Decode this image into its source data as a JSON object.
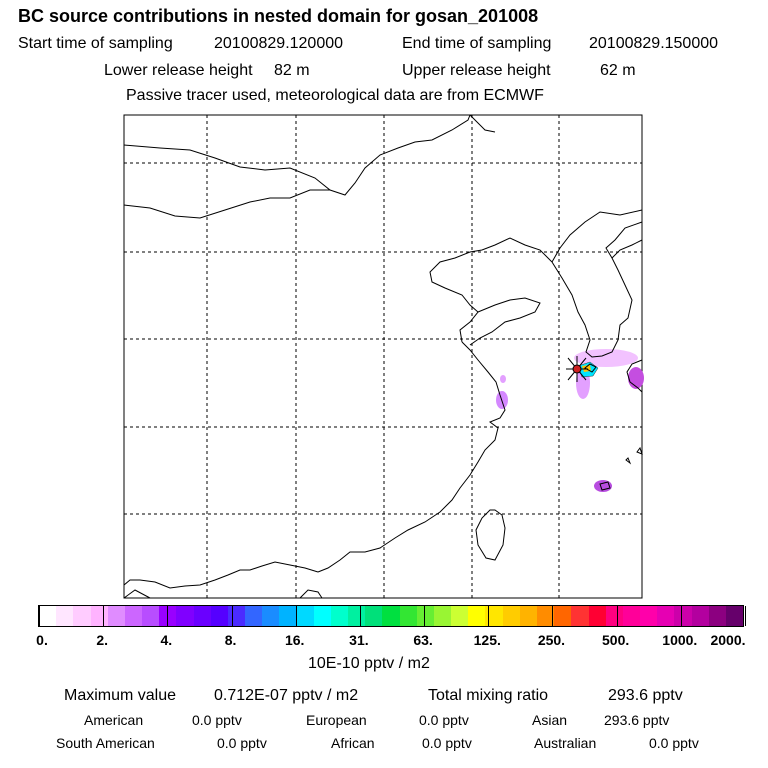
{
  "title": "BC  source contributions in nested domain for gosan_201008",
  "header": {
    "start_label": "Start time of sampling",
    "start_value": "20100829.120000",
    "end_label": "End time of sampling",
    "end_value": "20100829.150000",
    "lower_label": "Lower release height",
    "lower_value": "82 m",
    "upper_label": "Upper release height",
    "upper_value": "62 m",
    "note": "Passive tracer used, meteorological data are from ECMWF"
  },
  "colorbar": {
    "labels": [
      "0.",
      "2.",
      "4.",
      "8.",
      "16.",
      "31.",
      "63.",
      "125.",
      "250.",
      "500.",
      "1000.",
      "2000."
    ],
    "unit": "10E-10 pptv / m2",
    "colors": [
      "#ffffff",
      "#ffe6ff",
      "#ffccff",
      "#ffb3ff",
      "#e08cff",
      "#cc66ff",
      "#b84dff",
      "#9900ff",
      "#8000ff",
      "#6a00ff",
      "#5500ff",
      "#4b2bff",
      "#3366ff",
      "#1a8cff",
      "#00b3ff",
      "#00d9ff",
      "#00ffff",
      "#00ffcc",
      "#00f0a0",
      "#00e07a",
      "#00e040",
      "#33e633",
      "#66ee33",
      "#99f533",
      "#ccff33",
      "#ffff00",
      "#ffe600",
      "#ffcc00",
      "#ffb300",
      "#ff8c00",
      "#ff6600",
      "#ff3333",
      "#ff0033",
      "#ff0080",
      "#ff0099",
      "#ff00aa",
      "#e600b3",
      "#cc00aa",
      "#b3009f",
      "#8c0080",
      "#66006b"
    ]
  },
  "summary": {
    "max_label": "Maximum value",
    "max_value": "0.712E-07 pptv / m2",
    "total_label": "Total mixing ratio",
    "total_value": "293.6 pptv",
    "american_label": "American",
    "american_value": "0.0 pptv",
    "european_label": "European",
    "european_value": "0.0 pptv",
    "asian_label": "Asian",
    "asian_value": "293.6 pptv",
    "south_american_label": "South American",
    "south_american_value": "0.0 pptv",
    "african_label": "African",
    "african_value": "0.0 pptv",
    "australian_label": "Australian",
    "australian_value": "0.0 pptv"
  }
}
